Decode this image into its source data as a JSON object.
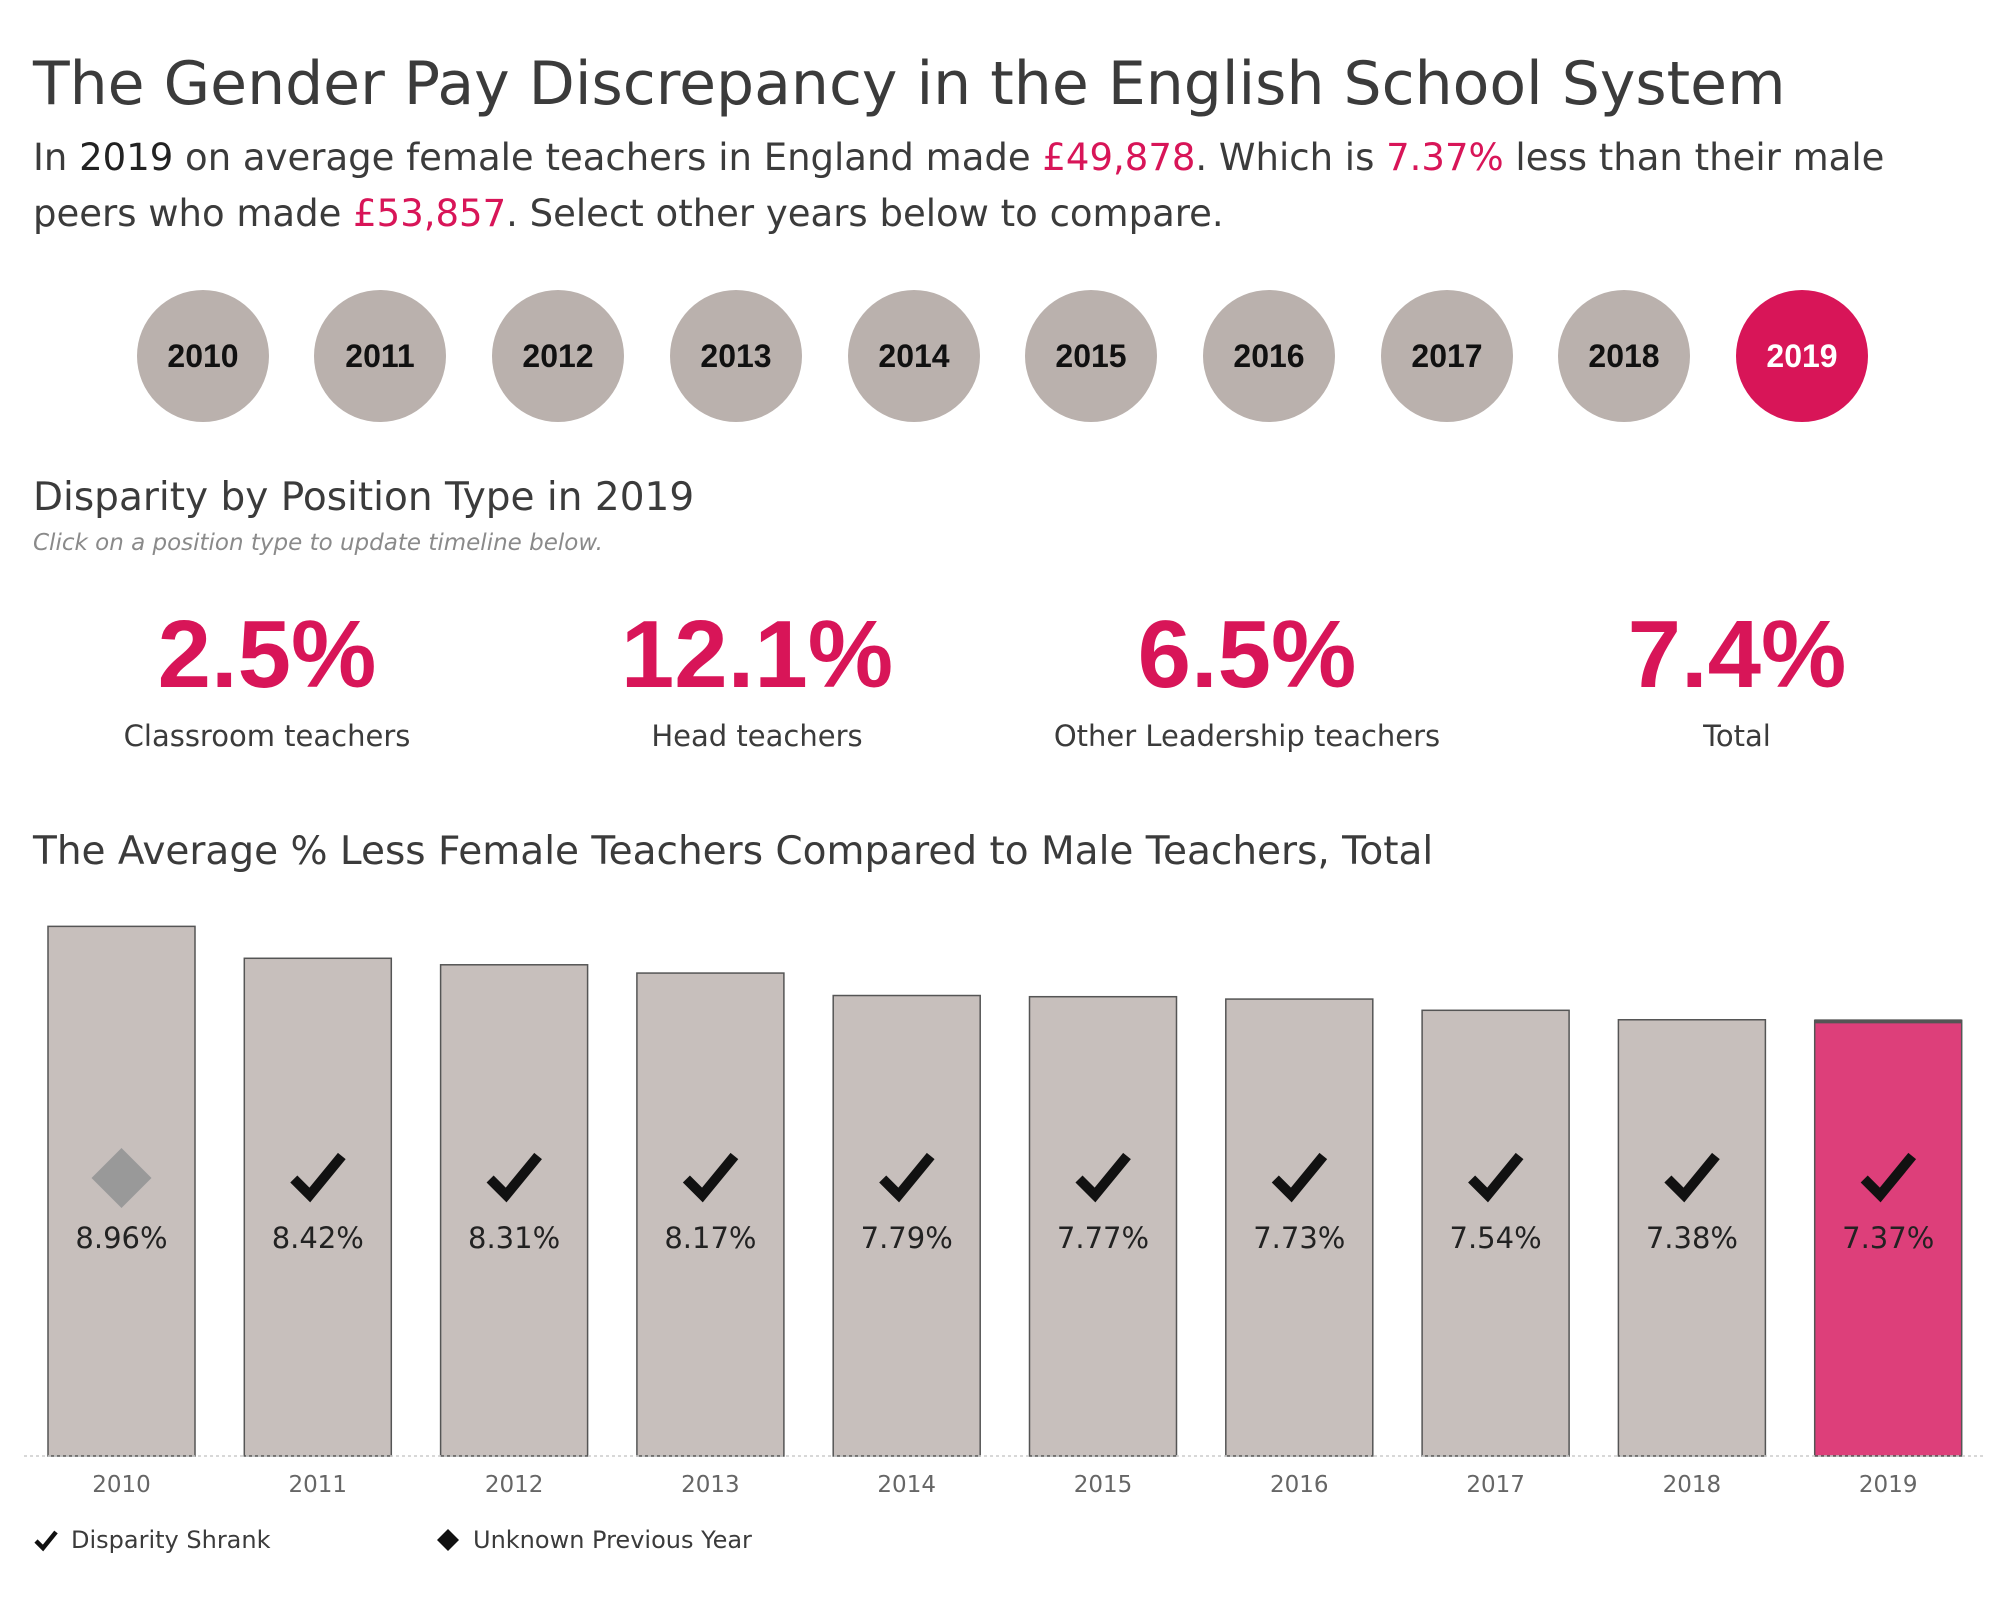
{
  "header": {
    "title": "The Gender Pay Discrepancy  in the English School System",
    "intro": {
      "p1": "In ",
      "year": "2019",
      "p2": " on average female teachers in England made ",
      "female_pay": "£49,878",
      "p3": ". Which is ",
      "pct": "7.37%",
      "p4": " less than their male peers who made ",
      "male_pay": "£53,857",
      "p5": ". Select other years below to compare."
    }
  },
  "years": [
    "2010",
    "2011",
    "2012",
    "2013",
    "2014",
    "2015",
    "2016",
    "2017",
    "2018",
    "2019"
  ],
  "selected_year": "2019",
  "position_section": {
    "title": "Disparity by Position Type in 2019",
    "subtitle": "Click on a position type to update timeline below."
  },
  "kpis": [
    {
      "value": "2.5%",
      "label": "Classroom teachers"
    },
    {
      "value": "12.1%",
      "label": "Head teachers"
    },
    {
      "value": "6.5%",
      "label": "Other Leadership teachers"
    },
    {
      "value": "7.4%",
      "label": "Total"
    }
  ],
  "timeline_title": "The Average % Less Female Teachers Compared to Male Teachers, Total",
  "chart_data": {
    "type": "bar",
    "categories": [
      "2010",
      "2011",
      "2012",
      "2013",
      "2014",
      "2015",
      "2016",
      "2017",
      "2018",
      "2019"
    ],
    "values": [
      8.96,
      8.42,
      8.31,
      8.17,
      7.79,
      7.77,
      7.73,
      7.54,
      7.38,
      7.37
    ],
    "value_labels": [
      "8.96%",
      "8.42%",
      "8.31%",
      "8.17%",
      "7.79%",
      "7.77%",
      "7.73%",
      "7.54%",
      "7.38%",
      "7.37%"
    ],
    "markers": [
      "diamond",
      "check",
      "check",
      "check",
      "check",
      "check",
      "check",
      "check",
      "check",
      "check"
    ],
    "highlight": "2019",
    "ylim": [
      0,
      9
    ],
    "grid": false,
    "legend_position": "bottom-left"
  },
  "legend": [
    {
      "icon": "check-icon",
      "label": "Disparity Shrank"
    },
    {
      "icon": "diamond-icon",
      "label": "Unknown Previous Year"
    }
  ],
  "colors": {
    "accent": "#d81558",
    "bar": "#c7bfbc",
    "bar_highlight": "#dd3f7a",
    "bar_stroke": "#555555",
    "year_button": "#bab1ad",
    "diamond": "#999999"
  }
}
